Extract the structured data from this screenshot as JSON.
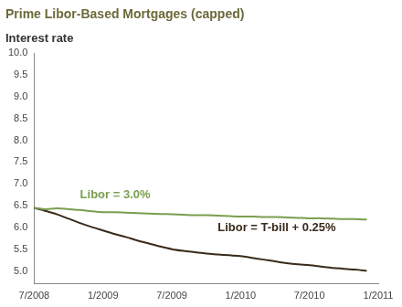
{
  "chart_data": {
    "type": "line",
    "title": "Prime Libor-Based Mortgages (capped)",
    "subtitle": "Interest rate",
    "categories": [
      "7/2008",
      null,
      null,
      null,
      null,
      null,
      "1/2009",
      null,
      null,
      null,
      null,
      null,
      "7/2009",
      null,
      null,
      null,
      null,
      null,
      "1/2010",
      null,
      null,
      null,
      null,
      null,
      "7/2010",
      null,
      null,
      null,
      null,
      null,
      "1/2011"
    ],
    "series": [
      {
        "name": "Libor = 3.0%",
        "color": "#7a9e4e",
        "values": [
          6.45,
          6.42,
          6.44,
          6.42,
          6.4,
          6.37,
          6.35,
          6.35,
          6.34,
          6.33,
          6.32,
          6.31,
          6.3,
          6.29,
          6.28,
          6.28,
          6.27,
          6.26,
          6.25,
          6.25,
          6.24,
          6.24,
          6.23,
          6.22,
          6.21,
          6.21,
          6.2,
          6.19,
          6.19,
          6.18,
          null
        ]
      },
      {
        "name": "Libor = T-bill + 0.25%",
        "color": "#3a2a1a",
        "values": [
          6.45,
          6.38,
          6.3,
          6.2,
          6.1,
          6.01,
          5.93,
          5.85,
          5.78,
          5.7,
          5.63,
          5.56,
          5.5,
          5.46,
          5.43,
          5.4,
          5.38,
          5.36,
          5.34,
          5.3,
          5.26,
          5.22,
          5.18,
          5.15,
          5.13,
          5.1,
          5.07,
          5.05,
          5.03,
          5.0,
          null
        ]
      }
    ],
    "ylim": [
      4.7,
      10.0
    ],
    "yticks": [
      {
        "value": 5,
        "label": "5.0"
      },
      5.5,
      {
        "value": 6,
        "label": "6.0"
      },
      6.5,
      {
        "value": 7,
        "label": "7.0"
      },
      7.5,
      {
        "value": 8,
        "label": "8.0"
      },
      8.5,
      {
        "value": 9,
        "label": "9.0"
      },
      9.5,
      {
        "value": 10,
        "label": "10.0"
      }
    ],
    "grid": false
  }
}
